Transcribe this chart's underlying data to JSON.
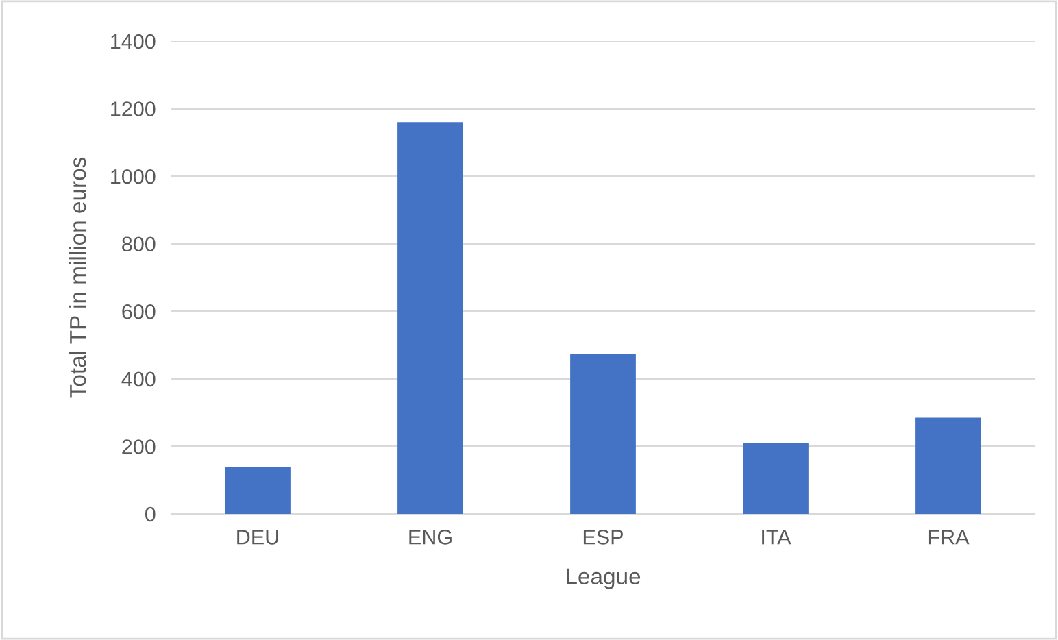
{
  "chart_data": {
    "type": "bar",
    "xlabel": "League",
    "ylabel": "Total TP in million euros",
    "categories": [
      "DEU",
      "ENG",
      "ESP",
      "ITA",
      "FRA"
    ],
    "values": [
      140,
      1160,
      475,
      210,
      285
    ],
    "color": "#4472c4",
    "ylim": [
      0,
      1400
    ],
    "yticks": [
      0,
      200,
      400,
      600,
      800,
      1000,
      1200,
      1400
    ],
    "grid": "y",
    "legend": false
  }
}
